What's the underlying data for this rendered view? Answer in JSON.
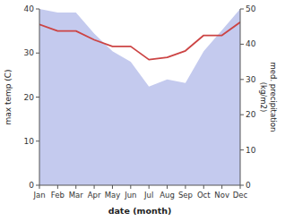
{
  "chart_data": {
    "type": "line",
    "xlabel": "date (month)",
    "ylabel": "max temp (C)",
    "y2label": "med. precipitation\n(kg/m2)",
    "categories": [
      "Jan",
      "Feb",
      "Mar",
      "Apr",
      "May",
      "Jun",
      "Jul",
      "Aug",
      "Sep",
      "Oct",
      "Nov",
      "Dec"
    ],
    "series": [
      {
        "type": "area",
        "color": "#b0b8e8",
        "axis": "y2",
        "values": [
          50,
          49,
          49,
          43,
          38,
          35,
          28,
          30,
          29,
          38,
          44,
          50
        ]
      },
      {
        "type": "line",
        "color": "#cc4444",
        "values": [
          36.5,
          35,
          35,
          33,
          31.5,
          31.5,
          28.5,
          29,
          30.5,
          34,
          34,
          37
        ]
      }
    ],
    "ylim": [
      0,
      40
    ],
    "yticks": [
      0,
      10,
      20,
      30,
      40
    ],
    "y2lim": [
      0,
      50
    ],
    "y2ticks": [
      0,
      10,
      20,
      30,
      40,
      50
    ]
  }
}
